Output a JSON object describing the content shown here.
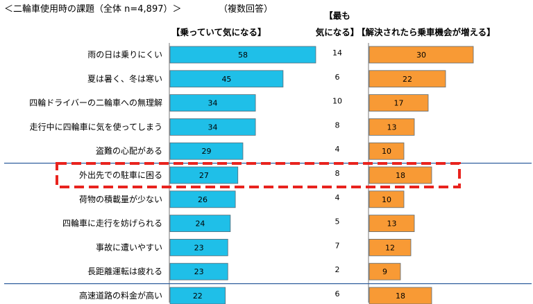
{
  "chart_data": {
    "type": "bar",
    "title": "＜二輪車使用時の課題（全体 n=4,897）＞",
    "subtitle": "（複数回答）",
    "categories": [
      "雨の日は乗りにくい",
      "夏は暑く、冬は寒い",
      "四輪ドライバーの二輪車への無理解",
      "走行中に四輪車に気を使ってしまう",
      "盗難の心配がある",
      "外出先での駐車に困る",
      "荷物の積載量が少ない",
      "四輪車に走行を妨げられる",
      "事故に遭いやすい",
      "長距離運転は疲れる",
      "高速道路の料金が高い"
    ],
    "series": [
      {
        "name": "【乗っていて気になる】",
        "color": "#1fbfe8",
        "values": [
          58,
          45,
          34,
          34,
          29,
          27,
          26,
          24,
          23,
          23,
          22
        ]
      },
      {
        "name": "【最も気になる】",
        "values": [
          14,
          6,
          10,
          8,
          4,
          8,
          4,
          5,
          7,
          2,
          6
        ]
      },
      {
        "name": "【解決されたら乗車機会が増える】",
        "color": "#f89a35",
        "values": [
          30,
          22,
          17,
          13,
          10,
          18,
          10,
          13,
          12,
          9,
          18
        ]
      }
    ],
    "header_most_line1": "【最も",
    "header_most_line2": "気になる】",
    "highlight_category": "外出先での駐車に困る",
    "highlight_color": "#e8231e",
    "separator_color": "#2f5f9e",
    "grid": false
  }
}
